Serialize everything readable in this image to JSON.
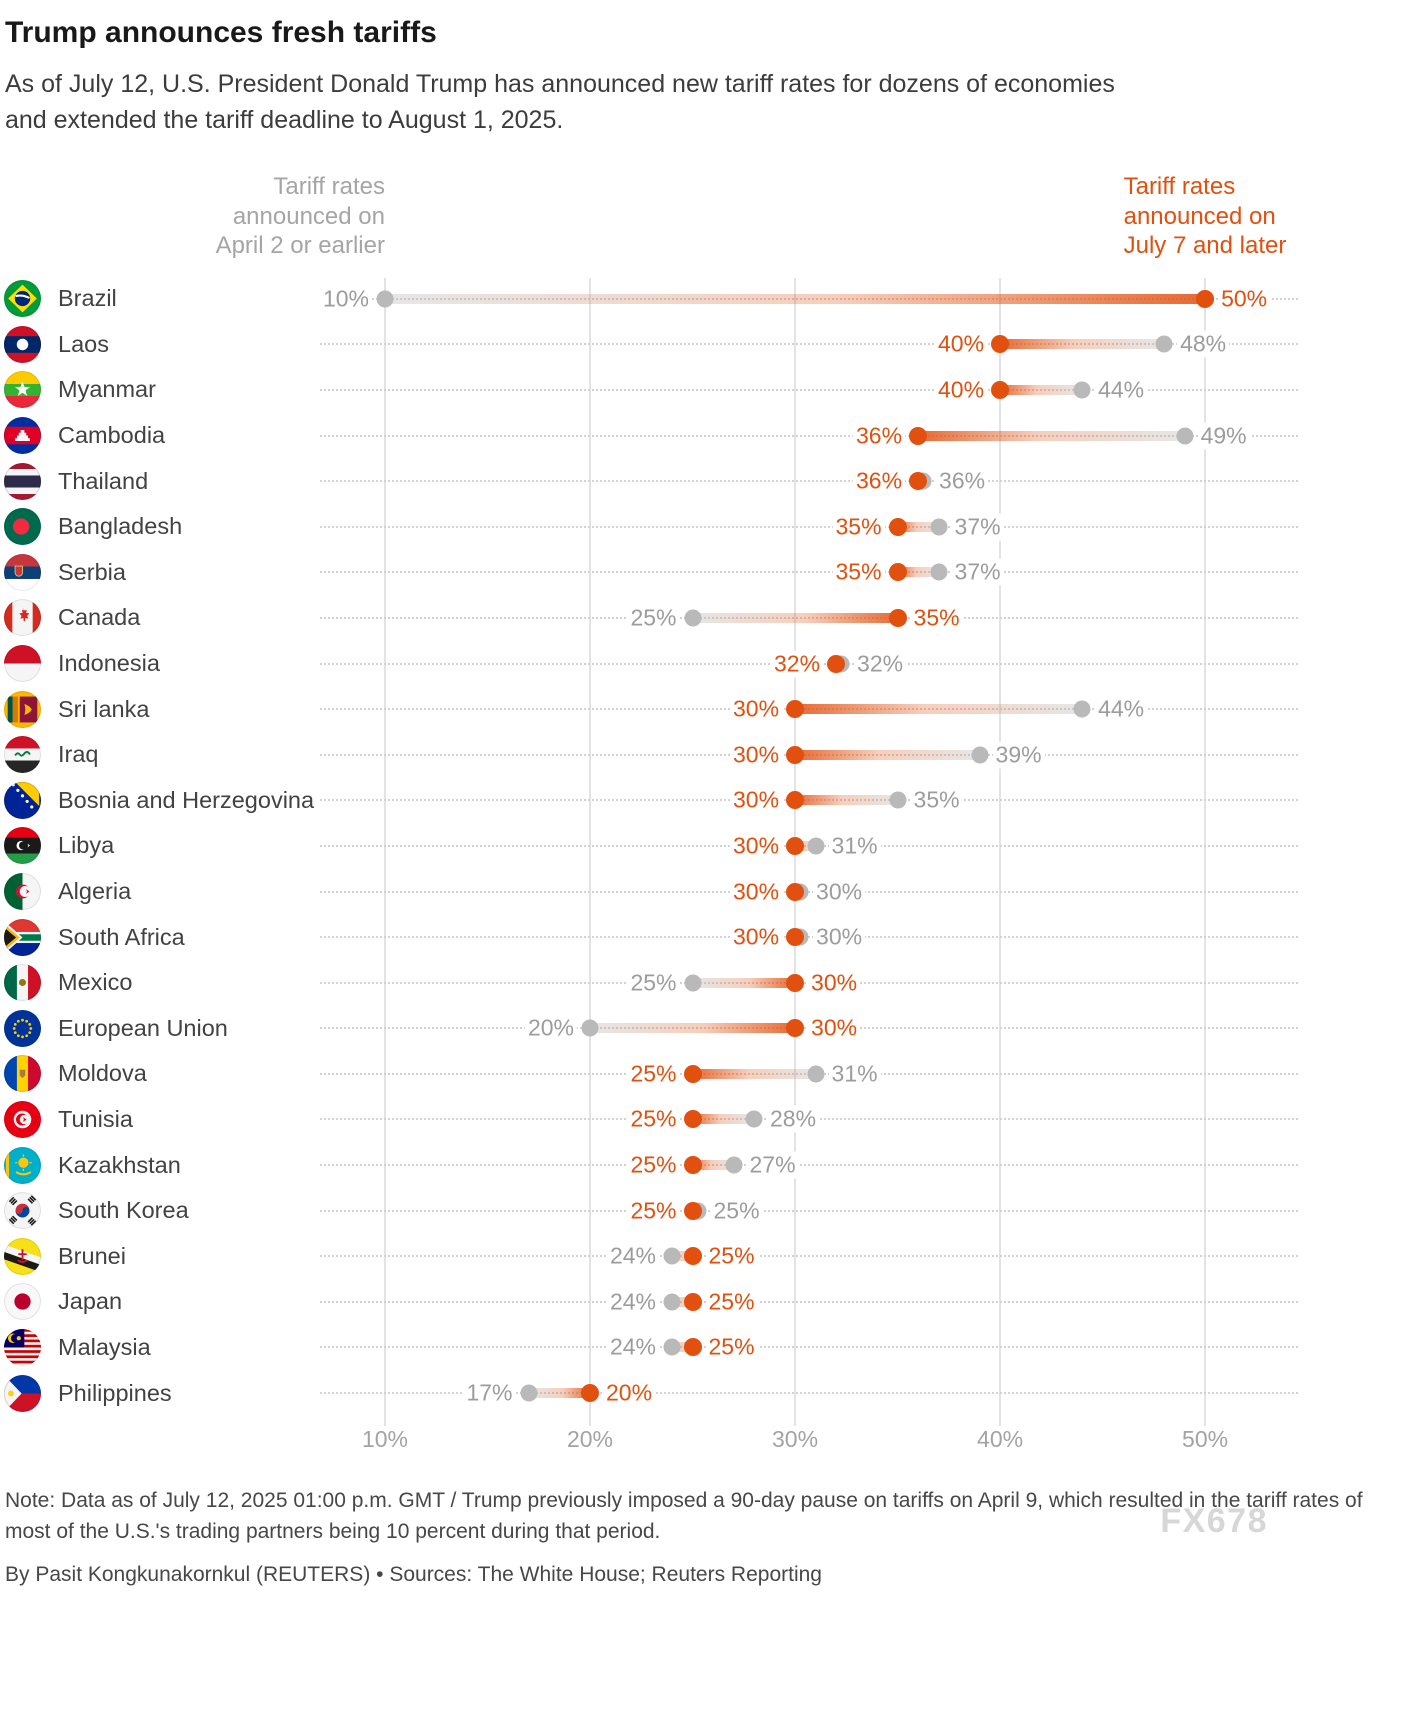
{
  "header": {
    "title": "Trump announces fresh tariffs",
    "subtitle": "As of July 12, U.S. President Donald Trump has announced new tariff rates for dozens of economies and extended the tariff deadline to August 1, 2025."
  },
  "legend": {
    "april_lines": [
      "Tariff rates",
      "announced on",
      "April 2 or earlier"
    ],
    "july_lines": [
      "Tariff rates",
      "announced on",
      "July 7 and later"
    ]
  },
  "chart_data": {
    "type": "dumbbell",
    "title": "Trump announces fresh tariffs",
    "x_domain": [
      6.83,
      54.63
    ],
    "x_ticks": [
      10,
      20,
      30,
      40,
      50
    ],
    "x_tick_labels": [
      "10%",
      "20%",
      "30%",
      "40%",
      "50%"
    ],
    "grid": true,
    "unit": "%",
    "series": [
      {
        "name": "Tariff rates announced on April 2 or earlier",
        "color": "#b9b9b9"
      },
      {
        "name": "Tariff rates announced on July 7 and later",
        "color": "#e1500f"
      }
    ],
    "countries": [
      {
        "name": "Brazil",
        "flag": "brazil",
        "april": 10,
        "july": 50
      },
      {
        "name": "Laos",
        "flag": "laos",
        "april": 48,
        "july": 40
      },
      {
        "name": "Myanmar",
        "flag": "myanmar",
        "april": 44,
        "july": 40
      },
      {
        "name": "Cambodia",
        "flag": "cambodia",
        "april": 49,
        "july": 36
      },
      {
        "name": "Thailand",
        "flag": "thailand",
        "april": 36,
        "july": 36
      },
      {
        "name": "Bangladesh",
        "flag": "bangladesh",
        "april": 37,
        "july": 35
      },
      {
        "name": "Serbia",
        "flag": "serbia",
        "april": 37,
        "july": 35
      },
      {
        "name": "Canada",
        "flag": "canada",
        "april": 25,
        "july": 35
      },
      {
        "name": "Indonesia",
        "flag": "indonesia",
        "april": 32,
        "july": 32
      },
      {
        "name": "Sri lanka",
        "flag": "srilanka",
        "april": 44,
        "july": 30
      },
      {
        "name": "Iraq",
        "flag": "iraq",
        "april": 39,
        "july": 30
      },
      {
        "name": "Bosnia and Herzegovina",
        "flag": "bosnia",
        "april": 35,
        "july": 30
      },
      {
        "name": "Libya",
        "flag": "libya",
        "april": 31,
        "july": 30
      },
      {
        "name": "Algeria",
        "flag": "algeria",
        "april": 30,
        "july": 30
      },
      {
        "name": "South Africa",
        "flag": "southafrica",
        "april": 30,
        "july": 30
      },
      {
        "name": "Mexico",
        "flag": "mexico",
        "april": 25,
        "july": 30
      },
      {
        "name": "European Union",
        "flag": "eu",
        "april": 20,
        "july": 30
      },
      {
        "name": "Moldova",
        "flag": "moldova",
        "april": 31,
        "july": 25
      },
      {
        "name": "Tunisia",
        "flag": "tunisia",
        "april": 28,
        "july": 25
      },
      {
        "name": "Kazakhstan",
        "flag": "kazakhstan",
        "april": 27,
        "july": 25
      },
      {
        "name": "South Korea",
        "flag": "southkorea",
        "april": 25,
        "july": 25
      },
      {
        "name": "Brunei",
        "flag": "brunei",
        "april": 24,
        "july": 25
      },
      {
        "name": "Japan",
        "flag": "japan",
        "april": 24,
        "july": 25
      },
      {
        "name": "Malaysia",
        "flag": "malaysia",
        "april": 24,
        "july": 25
      },
      {
        "name": "Philippines",
        "flag": "philippines",
        "april": 17,
        "july": 20
      }
    ]
  },
  "footer": {
    "note": "Note: Data as of July 12, 2025 01:00 p.m. GMT / Trump previously imposed a 90-day pause on tariffs on April 9, which resulted in the tariff rates of most of the U.S.'s trading partners being 10 percent during that period.",
    "byline": "By Pasit Kongkunakornkul (REUTERS) • Sources: The White House; Reuters Reporting",
    "watermark": "FX678"
  }
}
